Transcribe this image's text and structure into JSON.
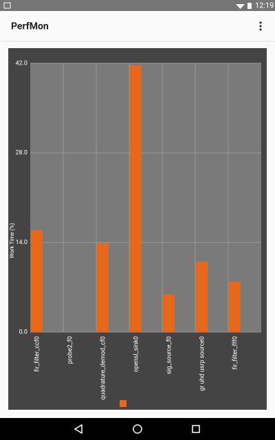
{
  "status_bar": {
    "time": "12:19"
  },
  "app_bar": {
    "title": "PerfMon"
  },
  "chart_data": {
    "type": "bar",
    "y_label": "Work Time (%)",
    "categories": [
      "fir_filter_ccf0",
      "probe2_f0",
      "quadrature_demod_cf0",
      "opensl_sink0",
      "sig_source_f0",
      "gr uhd usrp source0",
      "fir_filter_fff0"
    ],
    "series": [
      {
        "color": "#e8671b",
        "values": [
          15.9,
          0,
          13.9,
          41.7,
          5.9,
          11.0,
          7.9
        ]
      }
    ],
    "ylim": [
      0,
      42
    ],
    "yticks": [
      {
        "value": 0,
        "label": "0.0"
      },
      {
        "value": 14,
        "label": "14.0"
      },
      {
        "value": 28,
        "label": "28.0"
      },
      {
        "value": 42,
        "label": "42.0"
      }
    ],
    "grid": true
  }
}
